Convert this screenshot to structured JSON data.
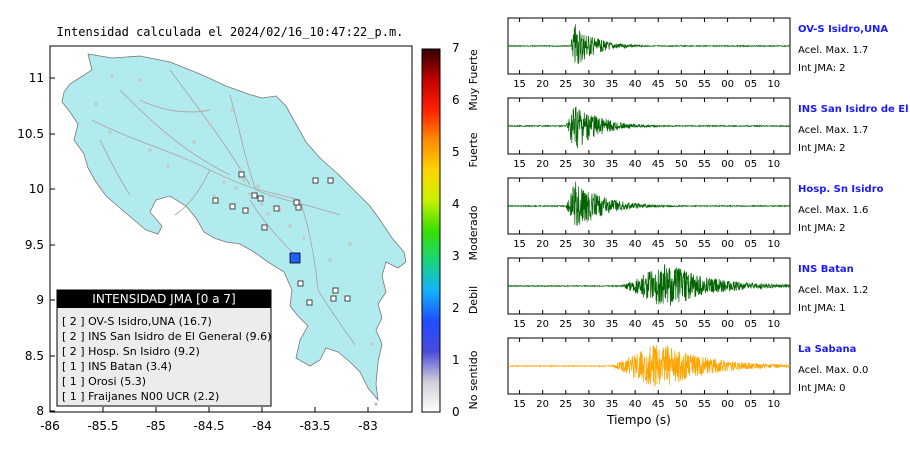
{
  "map": {
    "title": "Intensidad calculada el 2024/02/16_10:47:22_p.m.",
    "x_ticks": [
      "-86",
      "-85.5",
      "-85",
      "-84.5",
      "-84",
      "-83.5",
      "-83"
    ],
    "y_ticks": [
      "11",
      "10.5",
      "10",
      "9.5",
      "9",
      "8.5",
      "8"
    ],
    "colorbar": {
      "ticks": [
        "0",
        "1",
        "2",
        "3",
        "4",
        "5",
        "6",
        "7"
      ],
      "labels": [
        "No sentido",
        "Debil",
        "Moderado",
        "Fuerte",
        "Muy Fuerte"
      ],
      "colors": [
        "#ffffff",
        "#cfcfd8",
        "#4a4adb",
        "#1f4dff",
        "#14b0ff",
        "#19d57a",
        "#38e000",
        "#c8f000",
        "#ffd400",
        "#ff8a00",
        "#ff2000",
        "#c00000",
        "#300000"
      ]
    },
    "legend": {
      "title": "INTENSIDAD JMA [0 a 7]",
      "items": [
        "[ 2 ]  OV-S Isidro,UNA (16.7)",
        "[ 2 ]  INS San Isidro de El General (9.6)",
        "[ 2 ]  Hosp. Sn Isidro (9.2)",
        "[ 1 ]  INS Batan (3.4)",
        "[ 1 ]  Orosi (5.3)",
        "[ 1 ]  Fraijanes N00 UCR (2.2)"
      ]
    },
    "epicenter_color": "#1f5fff"
  },
  "chart_data": [
    {
      "type": "line",
      "title": "OV-S Isidro,UNA",
      "series": [
        {
          "name": "OV-S Isidro,UNA",
          "color": "#006400"
        }
      ],
      "x_ticks": [
        "15",
        "20",
        "25",
        "30",
        "35",
        "40",
        "45",
        "50",
        "55",
        "00",
        "05",
        "10"
      ],
      "info": {
        "accel": "Acel. Max. 1.7",
        "jma": "Int JMA: 2"
      },
      "burst": {
        "start": 26,
        "peak": 27,
        "end": 40,
        "amp": 0.9
      },
      "show_xticks": true
    },
    {
      "type": "line",
      "title": "INS San Isidro de El Ge",
      "series": [
        {
          "name": "INS San Isidro de El Ge",
          "color": "#006400"
        }
      ],
      "x_ticks": [
        "15",
        "20",
        "25",
        "30",
        "35",
        "40",
        "45",
        "50",
        "55",
        "00",
        "05",
        "10"
      ],
      "info": {
        "accel": "Acel. Max. 1.7",
        "jma": "Int JMA: 2"
      },
      "burst": {
        "start": 25,
        "peak": 27,
        "end": 42,
        "amp": 1.0
      },
      "show_xticks": true
    },
    {
      "type": "line",
      "title": "Hosp. Sn Isidro",
      "series": [
        {
          "name": "Hosp. Sn Isidro",
          "color": "#006400"
        }
      ],
      "x_ticks": [
        "15",
        "20",
        "25",
        "30",
        "35",
        "40",
        "45",
        "50",
        "55",
        "00",
        "05",
        "10"
      ],
      "info": {
        "accel": "Acel. Max. 1.6",
        "jma": "Int JMA: 2"
      },
      "burst": {
        "start": 25,
        "peak": 27,
        "end": 45,
        "amp": 1.0
      },
      "show_xticks": true
    },
    {
      "type": "line",
      "title": "INS Batan",
      "series": [
        {
          "name": "INS Batan",
          "color": "#006400"
        }
      ],
      "x_ticks": [
        "15",
        "20",
        "25",
        "30",
        "35",
        "40",
        "45",
        "50",
        "55",
        "00",
        "05",
        "10"
      ],
      "info": {
        "accel": "Acel. Max. 1.2",
        "jma": "Int JMA: 1"
      },
      "burst": {
        "start": 37,
        "peak": 47,
        "end": 75,
        "amp": 0.9
      },
      "show_xticks": true
    },
    {
      "type": "line",
      "title": "La Sabana",
      "series": [
        {
          "name": "La Sabana",
          "color": "#ffa500"
        }
      ],
      "x_ticks": [
        "15",
        "20",
        "25",
        "30",
        "35",
        "40",
        "45",
        "50",
        "55",
        "00",
        "05",
        "10"
      ],
      "info": {
        "accel": "Acel. Max. 0.0",
        "jma": "Int JMA: 0"
      },
      "burst": {
        "start": 35,
        "peak": 45,
        "end": 75,
        "amp": 0.95
      },
      "show_xticks": true,
      "xlabel": "Tiempo (s)"
    }
  ]
}
